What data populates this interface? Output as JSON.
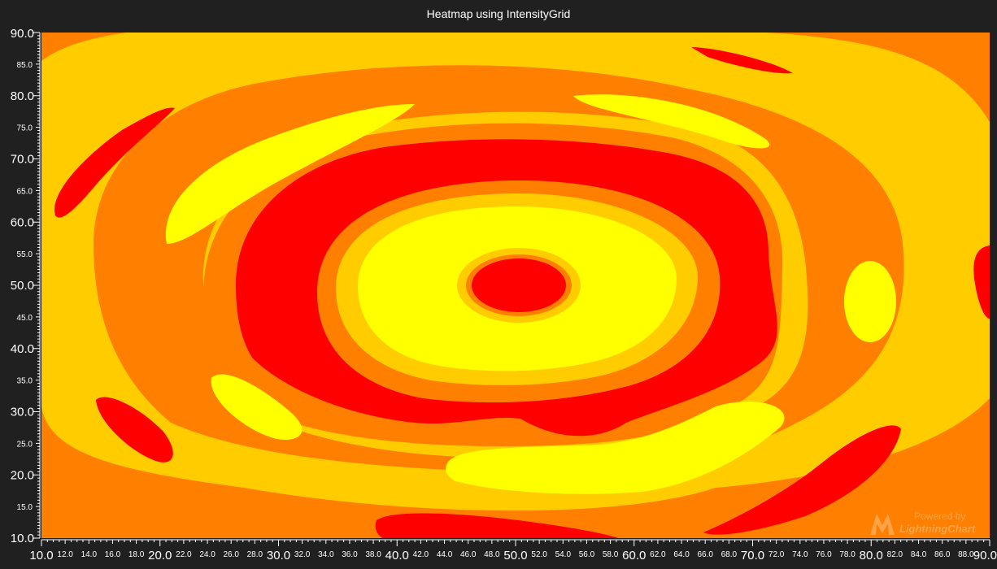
{
  "chart_data": {
    "type": "heatmap",
    "title": "Heatmap using IntensityGrid",
    "xlim": [
      10,
      90
    ],
    "ylim": [
      10,
      90
    ],
    "x_major_ticks": [
      "10.0",
      "20.0",
      "30.0",
      "40.0",
      "50.0",
      "60.0",
      "70.0",
      "80.0",
      "90.0"
    ],
    "x_minor_ticks": [
      "12.0",
      "14.0",
      "16.0",
      "18.0",
      "22.0",
      "24.0",
      "26.0",
      "28.0",
      "32.0",
      "34.0",
      "36.0",
      "38.0",
      "42.0",
      "44.0",
      "46.0",
      "48.0",
      "52.0",
      "54.0",
      "56.0",
      "58.0",
      "62.0",
      "64.0",
      "66.0",
      "68.0",
      "72.0",
      "74.0",
      "76.0",
      "78.0",
      "82.0",
      "84.0",
      "86.0",
      "88.0"
    ],
    "y_major_ticks": [
      "90.0",
      "80.0",
      "70.0",
      "60.0",
      "50.0",
      "40.0",
      "30.0",
      "20.0",
      "10.0"
    ],
    "y_minor_ticks": [
      "85.0",
      "75.0",
      "65.0",
      "55.0",
      "45.0",
      "35.0",
      "25.0",
      "15.0"
    ],
    "palette": [
      "#ff8000",
      "#ffcc00",
      "#ffff00",
      "#ff0000"
    ],
    "grid": false,
    "legend": "none",
    "center": [
      50,
      50
    ]
  },
  "watermark": {
    "line1": "Powered by",
    "line2": "LightningChart"
  },
  "colors": {
    "background": "#202020",
    "text": "#ffffff"
  }
}
